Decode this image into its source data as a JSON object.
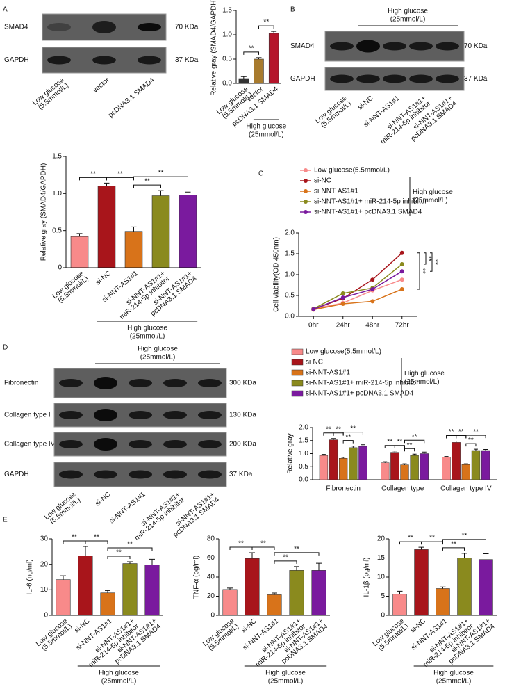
{
  "panel_labels": [
    "A",
    "B",
    "C",
    "D",
    "E"
  ],
  "blots": [
    {
      "rows": [
        {
          "label": "SMAD4",
          "size": "70 KDa"
        },
        {
          "label": "GAPDH",
          "size": "37 KDa"
        }
      ],
      "lanes": [
        [
          "Low glucose",
          "(5.5mmol/L)"
        ],
        [
          "vector"
        ],
        [
          "pcDNA3.1 SMAD4"
        ]
      ]
    },
    {
      "header": [
        "High glucose",
        "(25mmol/L)"
      ],
      "rows": [
        {
          "label": "SMAD4",
          "size": "70 KDa"
        },
        {
          "label": "GAPDH",
          "size": "37 KDa"
        }
      ],
      "lanes": [
        [
          "Low glucose",
          "(5.5mmol/L)"
        ],
        [
          "si-NC"
        ],
        [
          "si-NNT-AS1#1"
        ],
        [
          "si-NNT-AS1#1+",
          "miR-214-5p inhibitor"
        ],
        [
          "si-NNT-AS1#1+",
          "pcDNA3.1 SMAD4"
        ]
      ]
    },
    {
      "header": [
        "High glucose",
        "(25mmol/L)"
      ],
      "rows": [
        {
          "label": "Fibronectin",
          "size": "300 KDa"
        },
        {
          "label": "Collagen type I",
          "size": "130 KDa"
        },
        {
          "label": "Collagen type IV",
          "size": "200 KDa"
        },
        {
          "label": "GAPDH",
          "size": "37 KDa"
        }
      ],
      "lanes": [
        [
          "Low glucose",
          "(5.5mmol/L)"
        ],
        [
          "si-NC"
        ],
        [
          "si-NNT-AS1#1"
        ],
        [
          "si-NNT-AS1#1+",
          "miR-214-5p inhibitor"
        ],
        [
          "si-NNT-AS1#1+",
          "pcDNA3.1 SMAD4"
        ]
      ]
    }
  ],
  "chart_data": [
    {
      "type": "bar",
      "ylabel": "Relative gray (SMAD4/GAPDH)",
      "categories": [
        [
          "Low glucose",
          "(5.5mmol/L)"
        ],
        [
          "vector"
        ],
        [
          "pcDNA3.1 SMAD4"
        ]
      ],
      "values": [
        0.1,
        0.5,
        1.03
      ],
      "errors": [
        0.04,
        0.03,
        0.04
      ],
      "colors": [
        "#333333",
        "#a87b2e",
        "#b5142a"
      ],
      "ylim": [
        0,
        1.5
      ],
      "yticks": [
        {
          "value": 0,
          "label": "0.0"
        },
        0.5,
        {
          "value": 1,
          "label": "1.0"
        },
        1.5
      ],
      "group_label": [
        "High glucose",
        "(25mmol/L)"
      ],
      "group_span": [
        1,
        2
      ],
      "brackets": [
        {
          "pair": [
            0,
            1
          ],
          "label": "**"
        },
        {
          "pair": [
            1,
            2
          ],
          "label": "**"
        }
      ]
    },
    {
      "type": "bar",
      "ylabel": "Relative gray (SMAD4/GAPDH)",
      "categories": [
        [
          "Low glucose",
          "(5.5mmol/L)"
        ],
        [
          "si-NC"
        ],
        [
          "si-NNT-AS1#1"
        ],
        [
          "si-NNT-AS1#1+",
          "miR-214-5p inhibitor"
        ],
        [
          "si-NNT-AS1#1+",
          "pcDNA3.1 SMAD4"
        ]
      ],
      "values": [
        0.42,
        1.1,
        0.49,
        0.97,
        0.98
      ],
      "errors": [
        0.04,
        0.04,
        0.06,
        0.07,
        0.04
      ],
      "colors": [
        "#f88a8a",
        "#a8151b",
        "#d8731a",
        "#8a8a1e",
        "#7a1a9e"
      ],
      "ylim": [
        0,
        1.5
      ],
      "yticks": [
        0,
        0.5,
        {
          "value": 1,
          "label": "1.0"
        },
        1.5
      ],
      "group_label": [
        "High glucose",
        "(25mmol/L)"
      ],
      "group_span": [
        1,
        4
      ],
      "brackets": [
        {
          "pair": [
            0,
            1
          ],
          "label": "**"
        },
        {
          "pair": [
            1,
            2
          ],
          "label": "**"
        },
        {
          "pair": [
            2,
            3
          ],
          "label": "**"
        },
        {
          "pair": [
            2,
            4
          ],
          "label": "**"
        }
      ]
    },
    {
      "type": "line",
      "ylabel": "Cell viability(OD 450nm)",
      "categories": [
        "0hr",
        "24hr",
        "48hr",
        "72hr"
      ],
      "series": [
        {
          "name": "Low glucose(5.5mmol/L)",
          "color": "#f88a8a",
          "values": [
            0.18,
            0.32,
            0.62,
            0.88
          ]
        },
        {
          "name": "si-NC",
          "color": "#a8151b",
          "values": [
            0.17,
            0.43,
            0.88,
            1.52
          ]
        },
        {
          "name": "si-NNT-AS1#1",
          "color": "#d8731a",
          "values": [
            0.16,
            0.3,
            0.36,
            0.65
          ]
        },
        {
          "name": "si-NNT-AS1#1+ miR-214-5p inhibitor",
          "color": "#8a8a1e",
          "values": [
            0.18,
            0.55,
            0.68,
            1.25
          ]
        },
        {
          "name": "si-NNT-AS1#1+ pcDNA3.1 SMAD4",
          "color": "#7a1a9e",
          "values": [
            0.17,
            0.45,
            0.65,
            1.08
          ]
        }
      ],
      "ylim": [
        0,
        2
      ],
      "yticks": [
        {
          "value": 0,
          "label": "0.0"
        },
        0.5,
        {
          "value": 1,
          "label": "1.0"
        },
        1.5,
        {
          "value": 2,
          "label": "2.0"
        }
      ],
      "legend_group": [
        "High glucose",
        "(25mmol/L)"
      ],
      "group_span": [
        1,
        4
      ],
      "brackets": [
        {
          "pair": [
            1,
            2
          ],
          "label": "**"
        },
        {
          "pair": [
            1,
            3
          ],
          "label": "**"
        },
        {
          "pair": [
            1,
            4
          ],
          "label": "**"
        }
      ]
    },
    {
      "type": "grouped-bar",
      "ylabel": "Relative gray",
      "categories": [
        "Fibronectin",
        "Collagen type I",
        "Collagen type IV"
      ],
      "series": [
        {
          "name": "Low glucose(5.5mmol/L)",
          "color": "#f88a8a",
          "values": [
            0.93,
            0.65,
            0.86
          ],
          "errors": [
            0.04,
            0.04,
            0.03
          ]
        },
        {
          "name": "si-NC",
          "color": "#a8151b",
          "values": [
            1.53,
            1.05,
            1.43
          ],
          "errors": [
            0.05,
            0.05,
            0.05
          ]
        },
        {
          "name": "si-NNT-AS1#1",
          "color": "#d8731a",
          "values": [
            0.82,
            0.57,
            0.58
          ],
          "errors": [
            0.04,
            0.04,
            0.03
          ]
        },
        {
          "name": "si-NNT-AS1#1+ miR-214-5p inhibitor",
          "color": "#8a8a1e",
          "values": [
            1.23,
            0.93,
            1.12
          ],
          "errors": [
            0.06,
            0.05,
            0.05
          ]
        },
        {
          "name": "si-NNT-AS1#1+ pcDNA3.1 SMAD4",
          "color": "#7a1a9e",
          "values": [
            1.28,
            1.0,
            1.12
          ],
          "errors": [
            0.06,
            0.06,
            0.04
          ]
        }
      ],
      "ylim": [
        0,
        2
      ],
      "yticks": [
        {
          "value": 0,
          "label": "0.0"
        },
        0.5,
        {
          "value": 1,
          "label": "1.0"
        },
        1.5,
        {
          "value": 2,
          "label": "2.0"
        }
      ],
      "legend_group": [
        "High glucose",
        "(25mmol/L)"
      ],
      "group_span": [
        1,
        4
      ],
      "brackets": [
        {
          "pair": [
            0,
            1
          ],
          "label": "**"
        },
        {
          "pair": [
            1,
            2
          ],
          "label": "**"
        },
        {
          "pair": [
            2,
            3
          ],
          "label": "**"
        },
        {
          "pair": [
            2,
            4
          ],
          "label": "**"
        }
      ]
    },
    {
      "type": "bar",
      "ylabel": "IL-6 (ng/ml)",
      "categories": [
        [
          "Low glucose",
          "(5.5mmol/L)"
        ],
        [
          "si-NC"
        ],
        [
          "si-NNT-AS1#1"
        ],
        [
          "si-NNT-AS1#1+",
          "miR-214-5p inhibitor"
        ],
        [
          "si-NNT-AS1#1+",
          "pcDNA3.1 SMAD4"
        ]
      ],
      "values": [
        14,
        23.3,
        8.8,
        20.3,
        19.8
      ],
      "errors": [
        1.5,
        3.7,
        0.9,
        0.7,
        2.2
      ],
      "colors": [
        "#f88a8a",
        "#a8151b",
        "#d8731a",
        "#8a8a1e",
        "#7a1a9e"
      ],
      "ylim": [
        0,
        30
      ],
      "yticks": [
        0,
        10,
        20,
        30
      ],
      "group_label": [
        "High glucose",
        "(25mmol/L)"
      ],
      "group_span": [
        1,
        4
      ],
      "brackets": [
        {
          "pair": [
            0,
            1
          ],
          "label": "**"
        },
        {
          "pair": [
            1,
            2
          ],
          "label": "**"
        },
        {
          "pair": [
            2,
            3
          ],
          "label": "**"
        },
        {
          "pair": [
            2,
            4
          ],
          "label": "**"
        }
      ]
    },
    {
      "type": "bar",
      "ylabel": "TNF-α (pg/ml)",
      "categories": [
        [
          "Low glucose",
          "(5.5mmol/L)"
        ],
        [
          "si-NC"
        ],
        [
          "si-NNT-AS1#1"
        ],
        [
          "si-NNT-AS1#1+",
          "miR-214-5p inhibitor"
        ],
        [
          "si-NNT-AS1#1+",
          "pcDNA3.1 SMAD4"
        ]
      ],
      "values": [
        27,
        59.5,
        21.5,
        47,
        47
      ],
      "errors": [
        1.5,
        6,
        1.8,
        4,
        7.5
      ],
      "colors": [
        "#f88a8a",
        "#a8151b",
        "#d8731a",
        "#8a8a1e",
        "#7a1a9e"
      ],
      "ylim": [
        0,
        80
      ],
      "yticks": [
        0,
        20,
        40,
        60,
        80
      ],
      "group_label": [
        "High glucose",
        "(25mmol/L)"
      ],
      "group_span": [
        1,
        4
      ],
      "brackets": [
        {
          "pair": [
            0,
            1
          ],
          "label": "**"
        },
        {
          "pair": [
            1,
            2
          ],
          "label": "**"
        },
        {
          "pair": [
            2,
            3
          ],
          "label": "**"
        },
        {
          "pair": [
            2,
            4
          ],
          "label": "**"
        }
      ]
    },
    {
      "type": "bar",
      "ylabel": "IL-1β (pg/ml)",
      "categories": [
        [
          "Low glucose",
          "(5.5mmol/L)"
        ],
        [
          "si-NC"
        ],
        [
          "si-NNT-AS1#1"
        ],
        [
          "si-NNT-AS1#1+",
          "miR-214-5p inhibitor"
        ],
        [
          "si-NNT-AS1#1+",
          "pcDNA3.1 SMAD4"
        ]
      ],
      "values": [
        5.5,
        17.2,
        7,
        15,
        14.6
      ],
      "errors": [
        0.8,
        0.6,
        0.4,
        1.2,
        1.5
      ],
      "colors": [
        "#f88a8a",
        "#a8151b",
        "#d8731a",
        "#8a8a1e",
        "#7a1a9e"
      ],
      "ylim": [
        0,
        20
      ],
      "yticks": [
        0,
        5,
        10,
        15,
        20
      ],
      "group_label": [
        "High glucose",
        "(25mmol/L)"
      ],
      "group_span": [
        1,
        4
      ],
      "brackets": [
        {
          "pair": [
            0,
            1
          ],
          "label": "**"
        },
        {
          "pair": [
            1,
            2
          ],
          "label": "**"
        },
        {
          "pair": [
            2,
            3
          ],
          "label": "**"
        },
        {
          "pair": [
            2,
            4
          ],
          "label": "**"
        }
      ]
    }
  ]
}
